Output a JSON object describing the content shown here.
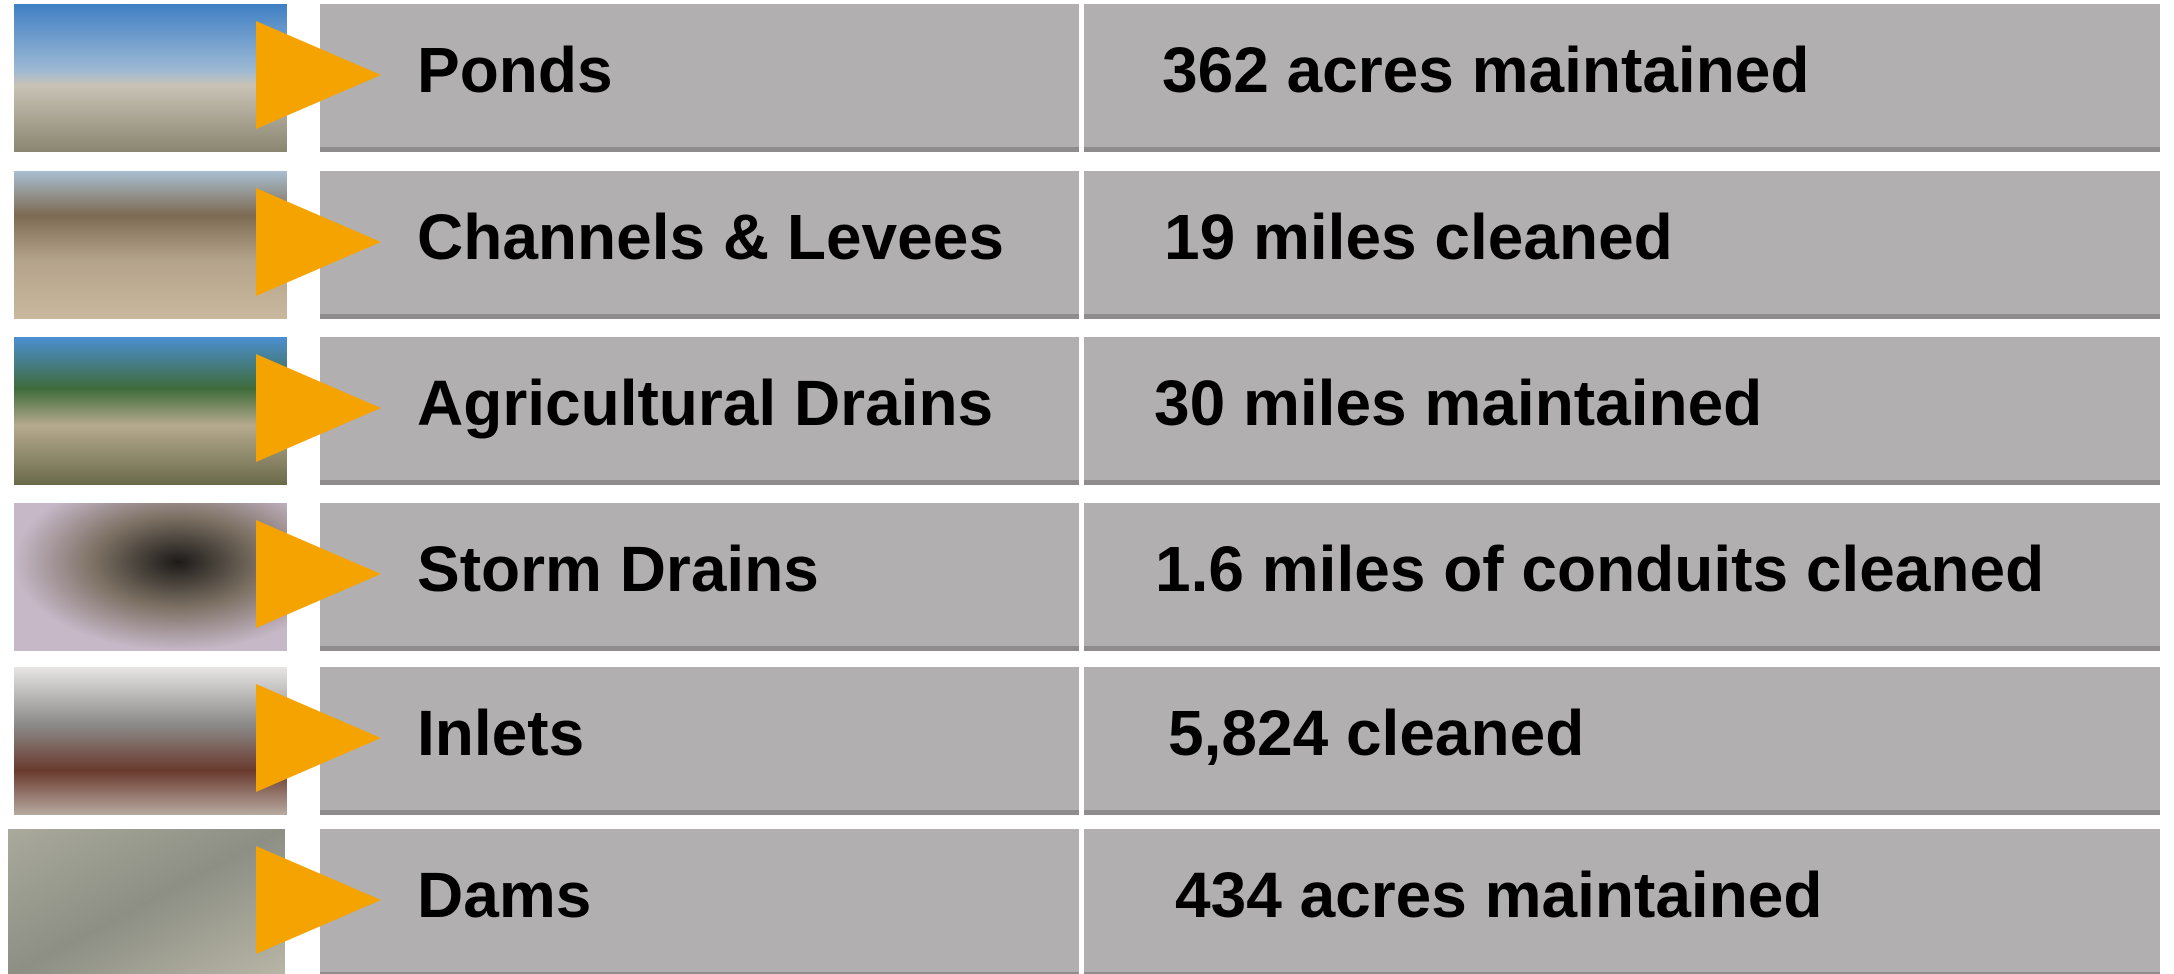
{
  "rows": [
    {
      "name": "Ponds",
      "stat": "362 acres maintained"
    },
    {
      "name": "Channels & Levees",
      "stat": "19 miles cleaned"
    },
    {
      "name": "Agricultural Drains",
      "stat": "30 miles maintained"
    },
    {
      "name": "Storm Drains",
      "stat": "1.6 miles of conduits cleaned"
    },
    {
      "name": "Inlets",
      "stat": "5,824 cleaned"
    },
    {
      "name": "Dams",
      "stat": "434 acres maintained"
    }
  ]
}
